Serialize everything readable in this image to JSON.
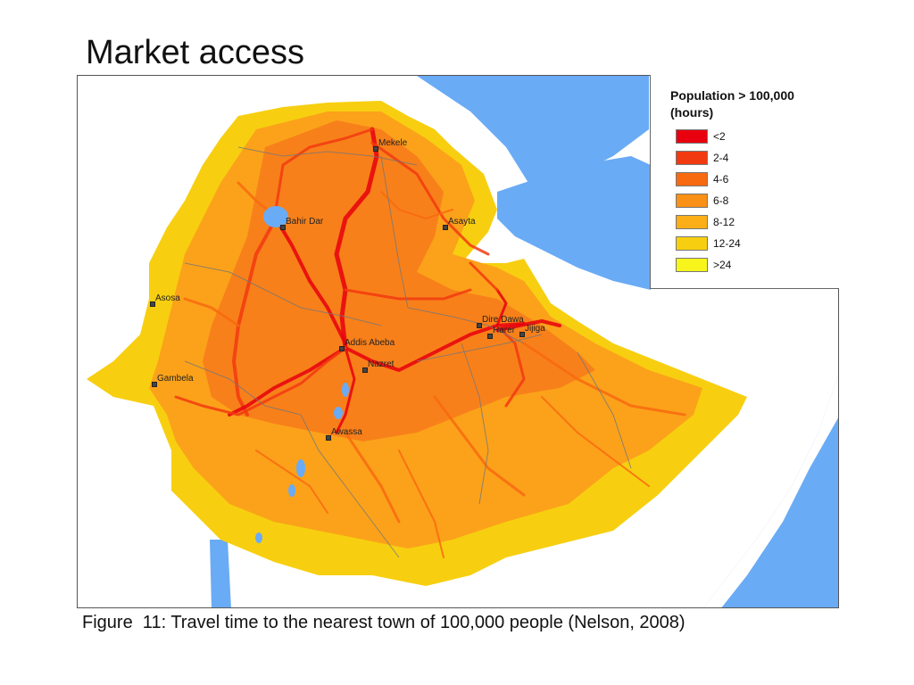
{
  "slide": {
    "title": "Market access",
    "caption": "Figure  11: Travel time to the nearest town of 100,000 people (Nelson, 2008)"
  },
  "legend": {
    "title_line1": "Population > 100,000",
    "title_line2": "(hours)",
    "classes": [
      {
        "label": "<2",
        "color": "#e8000e"
      },
      {
        "label": "2-4",
        "color": "#f23a10"
      },
      {
        "label": "4-6",
        "color": "#f86a10"
      },
      {
        "label": "6-8",
        "color": "#fa9015"
      },
      {
        "label": "8-12",
        "color": "#fbae17"
      },
      {
        "label": "12-24",
        "color": "#f7cf10"
      },
      {
        "label": ">24",
        "color": "#f7f51c"
      }
    ]
  },
  "map": {
    "water_color": "#6aabf5",
    "cities": [
      {
        "name": "Mekele"
      },
      {
        "name": "Bahir Dar"
      },
      {
        "name": "Asayta"
      },
      {
        "name": "Asosa"
      },
      {
        "name": "Dire Dawa"
      },
      {
        "name": "Harer"
      },
      {
        "name": "Jijiga"
      },
      {
        "name": "Addis Abeba"
      },
      {
        "name": "Nazret"
      },
      {
        "name": "Gambela"
      },
      {
        "name": "Awassa"
      }
    ]
  }
}
